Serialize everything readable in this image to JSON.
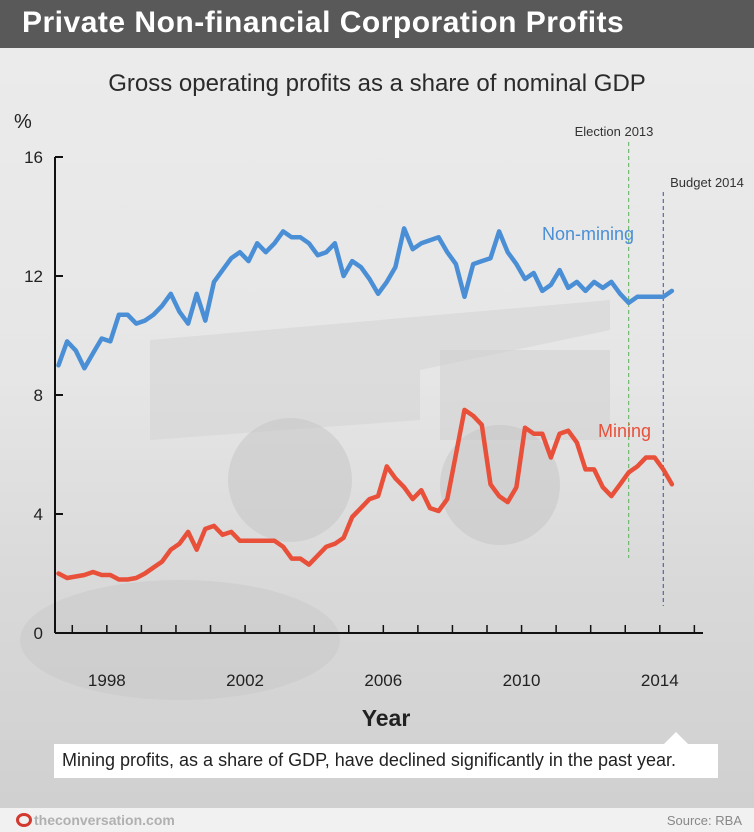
{
  "header": {
    "title": "Private Non-financial Corporation Profits"
  },
  "caption": "Mining profits, as a share of GDP, have declined significantly in the past year.",
  "footer": {
    "brand": "theconversation.com",
    "source": "Source: RBA"
  },
  "colors": {
    "non_mining": "#4a8fd6",
    "mining": "#e8503a",
    "election_line": "#5cb05c",
    "budget_line": "#3a4fa0",
    "title_bar": "#595959"
  },
  "chart_data": {
    "type": "line",
    "title": "Gross operating profits as a share of nominal GDP",
    "ylabel": "%",
    "xlabel": "Year",
    "ylim": [
      0,
      16
    ],
    "yticks": [
      0,
      4,
      8,
      12,
      16
    ],
    "xlim": [
      1996.5,
      2015.25
    ],
    "xticks": [
      1998,
      2002,
      2006,
      2010,
      2014
    ],
    "series": [
      {
        "name": "Non-mining",
        "x": [
          1996.6,
          1996.85,
          1997.1,
          1997.35,
          1997.6,
          1997.85,
          1998.1,
          1998.35,
          1998.6,
          1998.85,
          1999.1,
          1999.35,
          1999.6,
          1999.85,
          2000.1,
          2000.35,
          2000.6,
          2000.85,
          2001.1,
          2001.35,
          2001.6,
          2001.85,
          2002.1,
          2002.35,
          2002.6,
          2002.85,
          2003.1,
          2003.35,
          2003.6,
          2003.85,
          2004.1,
          2004.35,
          2004.6,
          2004.85,
          2005.1,
          2005.35,
          2005.6,
          2005.85,
          2006.1,
          2006.35,
          2006.6,
          2006.85,
          2007.1,
          2007.35,
          2007.6,
          2007.85,
          2008.1,
          2008.35,
          2008.6,
          2008.85,
          2009.1,
          2009.35,
          2009.6,
          2009.85,
          2010.1,
          2010.35,
          2010.6,
          2010.85,
          2011.1,
          2011.35,
          2011.6,
          2011.85,
          2012.1,
          2012.35,
          2012.6,
          2012.85,
          2013.1,
          2013.35,
          2013.6,
          2013.85,
          2014.1,
          2014.35
        ],
        "values": [
          9.0,
          9.8,
          9.5,
          8.9,
          9.4,
          9.9,
          9.8,
          10.7,
          10.7,
          10.4,
          10.5,
          10.7,
          11.0,
          11.4,
          10.8,
          10.4,
          11.4,
          10.5,
          11.8,
          12.2,
          12.6,
          12.8,
          12.5,
          13.1,
          12.8,
          13.1,
          13.5,
          13.3,
          13.3,
          13.1,
          12.7,
          12.8,
          13.1,
          12.0,
          12.5,
          12.3,
          11.9,
          11.4,
          11.8,
          12.3,
          13.6,
          12.9,
          13.1,
          13.2,
          13.3,
          12.8,
          12.4,
          11.3,
          12.4,
          12.5,
          12.6,
          13.5,
          12.8,
          12.4,
          11.9,
          12.1,
          11.5,
          11.7,
          12.2,
          11.6,
          11.8,
          11.5,
          11.8,
          11.6,
          11.8,
          11.4,
          11.1,
          11.3,
          11.3,
          11.3,
          11.3,
          11.5
        ]
      },
      {
        "name": "Mining",
        "x": [
          1996.6,
          1996.85,
          1997.1,
          1997.35,
          1997.6,
          1997.85,
          1998.1,
          1998.35,
          1998.6,
          1998.85,
          1999.1,
          1999.35,
          1999.6,
          1999.85,
          2000.1,
          2000.35,
          2000.6,
          2000.85,
          2001.1,
          2001.35,
          2001.6,
          2001.85,
          2002.1,
          2002.35,
          2002.6,
          2002.85,
          2003.1,
          2003.35,
          2003.6,
          2003.85,
          2004.1,
          2004.35,
          2004.6,
          2004.85,
          2005.1,
          2005.35,
          2005.6,
          2005.85,
          2006.1,
          2006.35,
          2006.6,
          2006.85,
          2007.1,
          2007.35,
          2007.6,
          2007.85,
          2008.1,
          2008.35,
          2008.6,
          2008.85,
          2009.1,
          2009.35,
          2009.6,
          2009.85,
          2010.1,
          2010.35,
          2010.6,
          2010.85,
          2011.1,
          2011.35,
          2011.6,
          2011.85,
          2012.1,
          2012.35,
          2012.6,
          2012.85,
          2013.1,
          2013.35,
          2013.6,
          2013.85,
          2014.1,
          2014.35
        ],
        "values": [
          2.0,
          1.85,
          1.9,
          1.95,
          2.05,
          1.95,
          1.95,
          1.8,
          1.8,
          1.85,
          2.0,
          2.2,
          2.4,
          2.8,
          3.0,
          3.4,
          2.8,
          3.5,
          3.6,
          3.3,
          3.4,
          3.1,
          3.1,
          3.1,
          3.1,
          3.1,
          2.9,
          2.5,
          2.5,
          2.3,
          2.6,
          2.9,
          3.0,
          3.2,
          3.9,
          4.2,
          4.5,
          4.6,
          5.6,
          5.2,
          4.9,
          4.5,
          4.8,
          4.2,
          4.1,
          4.5,
          6.0,
          7.5,
          7.3,
          7.0,
          5.0,
          4.6,
          4.4,
          4.9,
          6.9,
          6.7,
          6.7,
          5.9,
          6.7,
          6.8,
          6.4,
          5.5,
          5.5,
          4.9,
          4.6,
          5.0,
          5.4,
          5.6,
          5.9,
          5.9,
          5.5,
          5.0
        ]
      }
    ],
    "annotations": [
      {
        "label": "Election 2013",
        "x": 2013.1,
        "style": "dashed"
      },
      {
        "label": "Budget 2014",
        "x": 2014.1,
        "style": "dashed"
      }
    ],
    "grid": false,
    "legend": "inline labels next to lines"
  }
}
